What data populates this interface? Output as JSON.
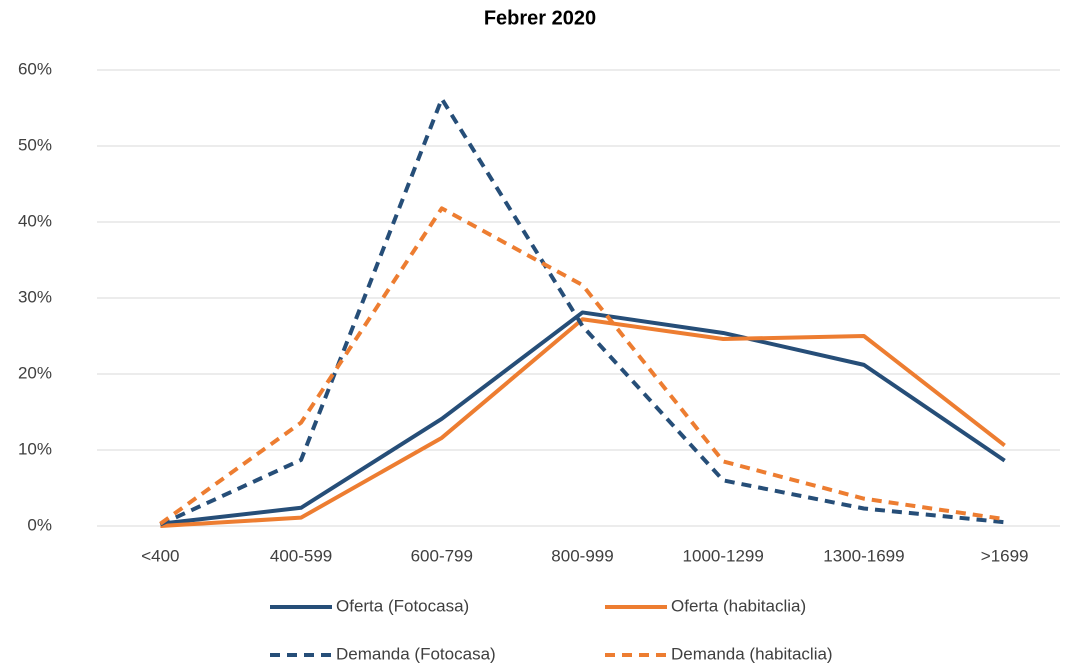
{
  "chart_data": {
    "type": "line",
    "title": "Febrer 2020",
    "categories": [
      "<400",
      "400-599",
      "600-799",
      "800-999",
      "1000-1299",
      "1300-1699",
      ">1699"
    ],
    "series": [
      {
        "name": "Oferta (Fotocasa)",
        "color": "#264e78",
        "style": "solid",
        "values": [
          0.3,
          2.4,
          14.1,
          28.1,
          25.4,
          21.2,
          8.6
        ]
      },
      {
        "name": "Oferta (habitaclia)",
        "color": "#ed7d31",
        "style": "solid",
        "values": [
          0,
          1.1,
          11.6,
          27.2,
          24.6,
          25.0,
          10.6
        ]
      },
      {
        "name": "Demanda (Fotocasa)",
        "color": "#264e78",
        "style": "dashed",
        "values": [
          0.2,
          8.7,
          56.2,
          26.3,
          6.0,
          2.3,
          0.5
        ]
      },
      {
        "name": "Demanda (habitaclia)",
        "color": "#ed7d31",
        "style": "dashed",
        "values": [
          0.3,
          13.6,
          41.8,
          31.7,
          8.5,
          3.6,
          0.9
        ]
      }
    ],
    "ylim": [
      0,
      60
    ],
    "yticks": [
      {
        "value": 0,
        "label": "0%"
      },
      {
        "value": 10,
        "label": "10%"
      },
      {
        "value": 20,
        "label": "20%"
      },
      {
        "value": 30,
        "label": "30%"
      },
      {
        "value": 40,
        "label": "40%"
      },
      {
        "value": 50,
        "label": "50%"
      },
      {
        "value": 60,
        "label": "60%"
      }
    ],
    "grid": true,
    "legend": "bottom"
  }
}
